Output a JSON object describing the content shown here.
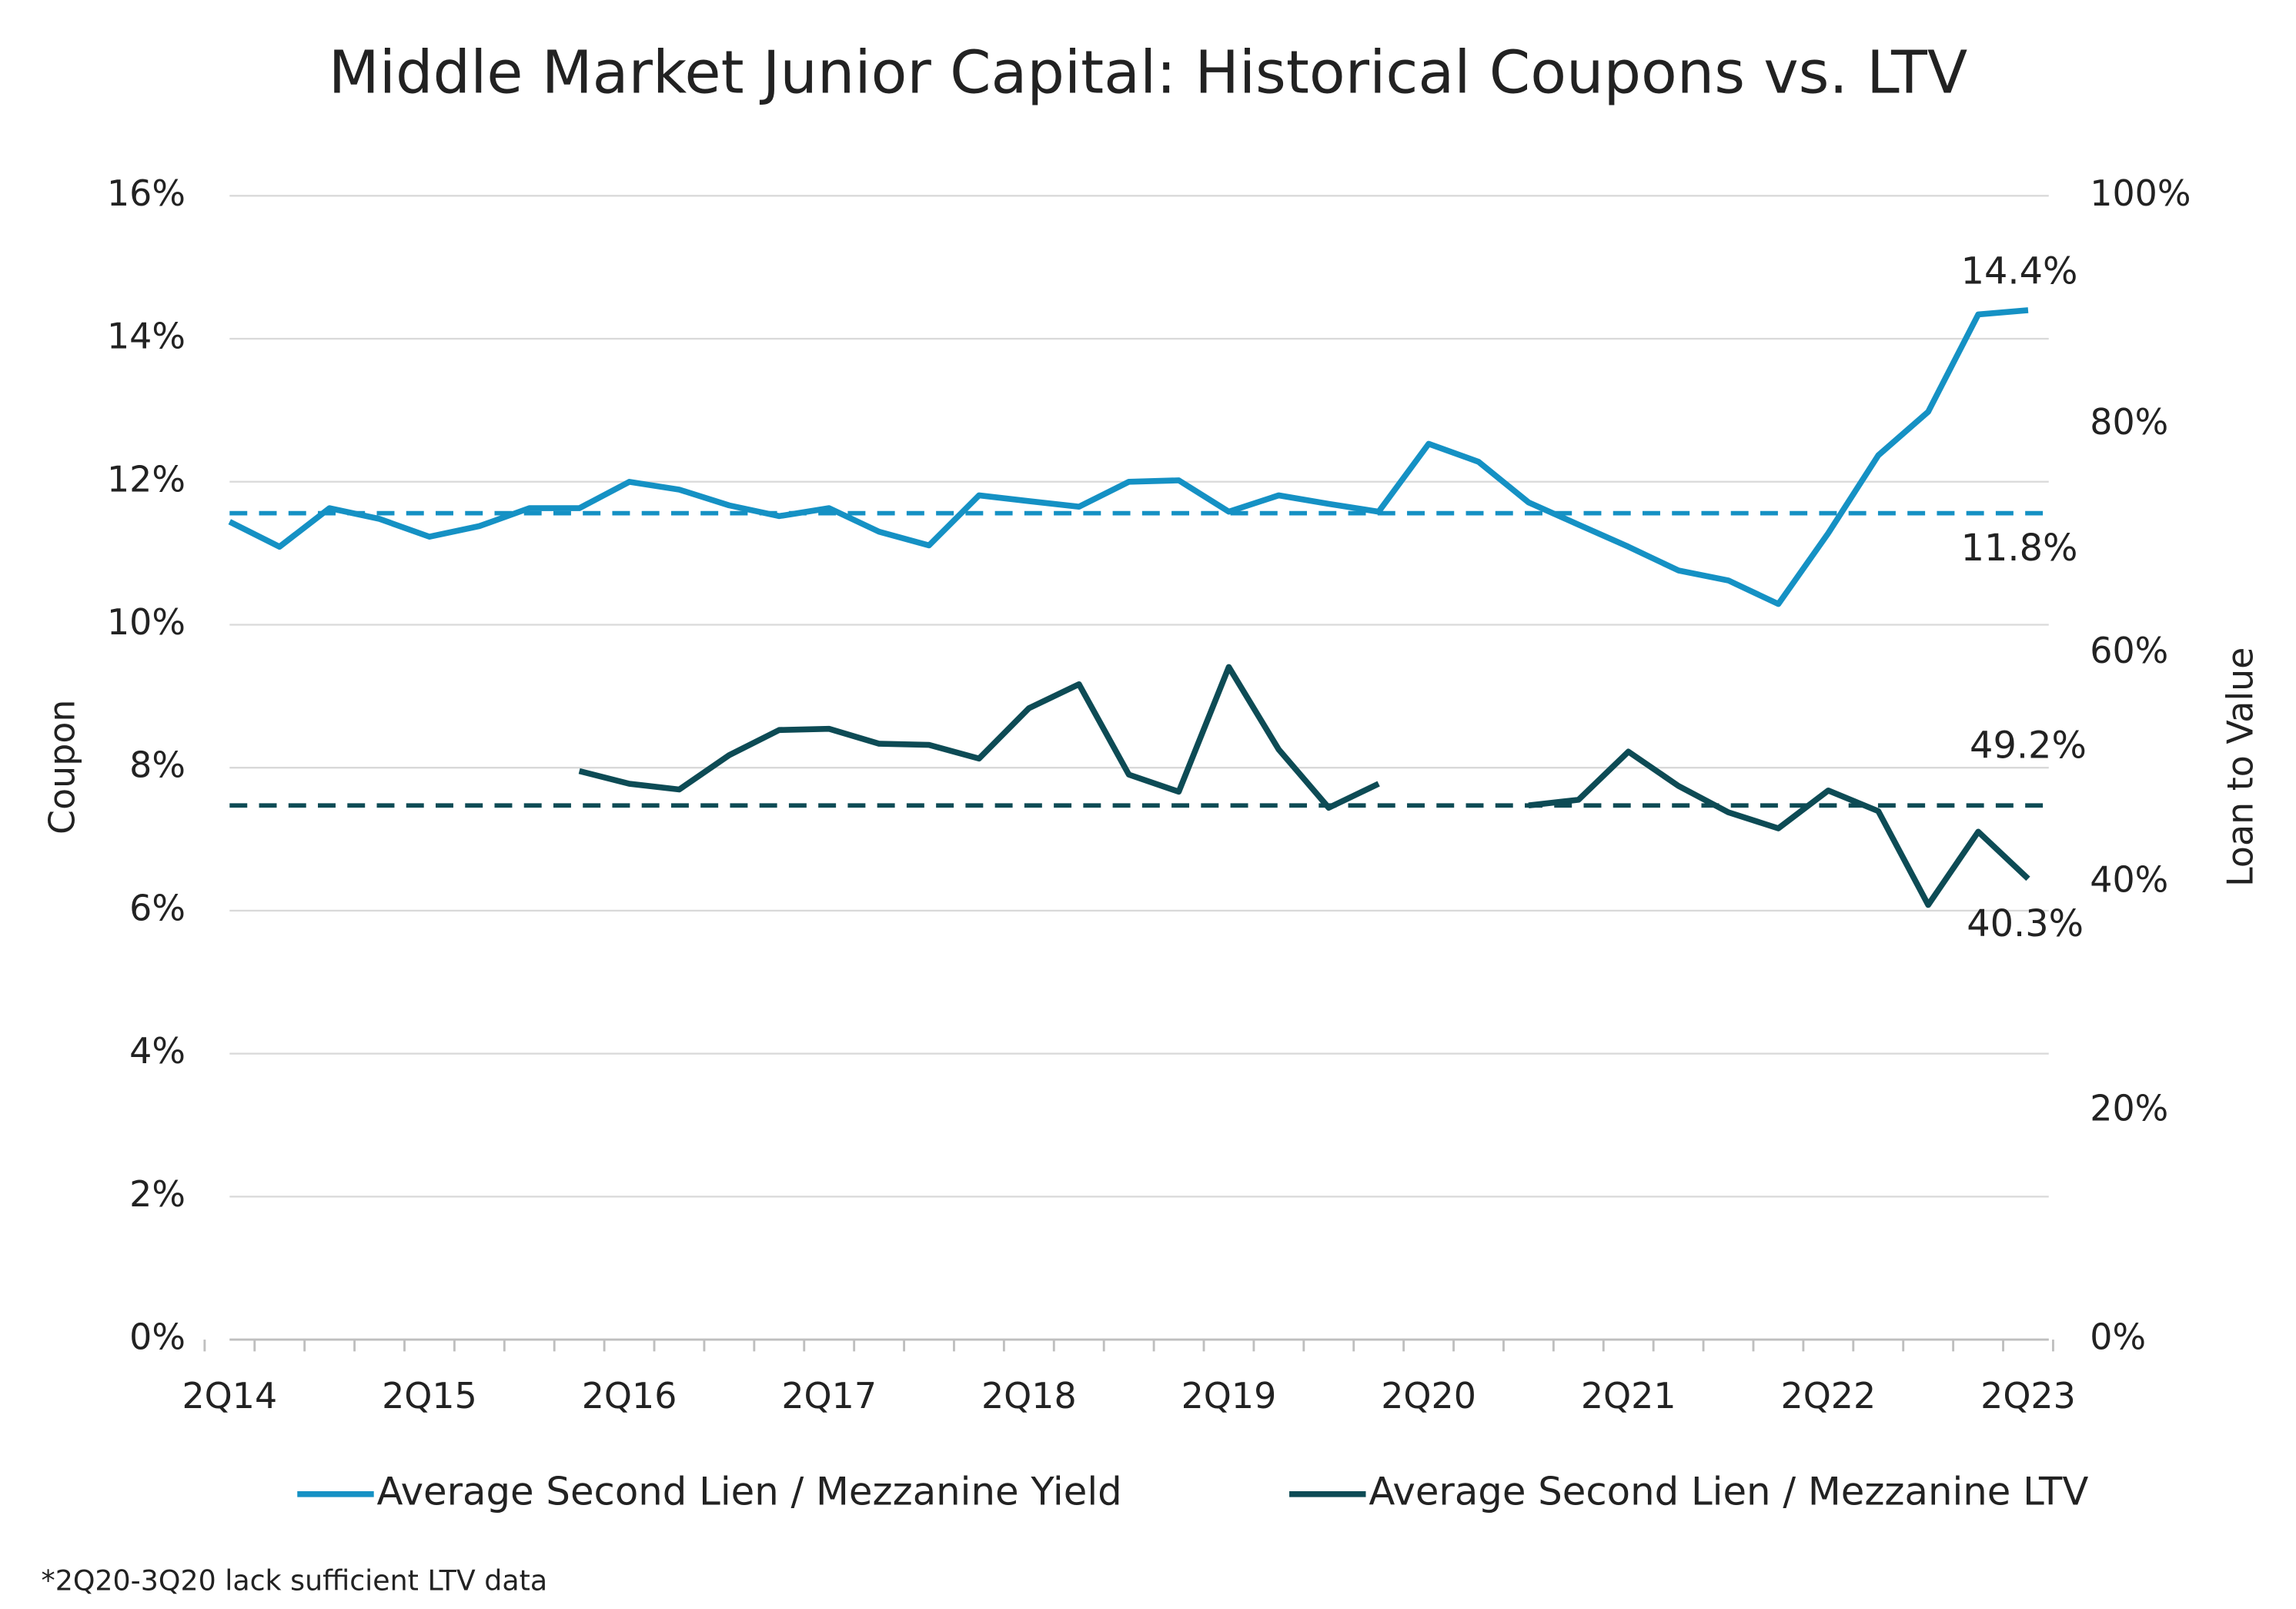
{
  "chart_data": {
    "type": "line",
    "title": "Middle Market Junior Capital: Historical Coupons vs. LTV",
    "y_label": "Coupon",
    "y2_label": "Loan to Value",
    "categories": [
      "2Q14",
      null,
      null,
      null,
      "2Q15",
      null,
      null,
      null,
      "2Q16",
      null,
      null,
      null,
      "2Q17",
      null,
      null,
      null,
      "2Q18",
      null,
      null,
      null,
      "2Q19",
      null,
      null,
      null,
      "2Q20",
      null,
      null,
      null,
      "2Q21",
      null,
      null,
      null,
      "2Q22",
      null,
      null,
      null,
      "2Q23"
    ],
    "series": [
      {
        "name": "Average Second Lien / Mezzanine Yield",
        "color": "#1591c4",
        "axis": "y",
        "values": [
          11.44,
          11.09,
          11.63,
          11.48,
          11.23,
          11.38,
          11.63,
          11.63,
          12.0,
          11.89,
          11.67,
          11.52,
          11.63,
          11.3,
          11.11,
          11.81,
          11.73,
          11.65,
          12.0,
          12.02,
          11.58,
          11.81,
          11.69,
          11.58,
          12.53,
          12.28,
          11.71,
          11.4,
          11.09,
          10.76,
          10.62,
          10.29,
          11.28,
          12.37,
          12.98,
          14.34,
          14.4
        ]
      },
      {
        "name": "Average Second Lien / Mezzanine LTV",
        "color": "#0d4b55",
        "axis": "y2",
        "values": [
          null,
          null,
          null,
          null,
          null,
          null,
          null,
          49.7,
          48.6,
          48.1,
          51.1,
          53.3,
          53.4,
          52.1,
          52.0,
          50.8,
          55.2,
          57.3,
          49.4,
          47.9,
          58.8,
          51.6,
          46.5,
          48.6,
          null,
          null,
          46.7,
          47.2,
          51.4,
          48.4,
          46.1,
          44.7,
          48.0,
          46.2,
          38.0,
          44.4,
          40.3
        ]
      }
    ],
    "reference_lines": [
      {
        "axis": "y",
        "value": 11.56,
        "color": "#1591c4"
      },
      {
        "axis": "y2",
        "value": 46.7,
        "color": "#0d4b55"
      }
    ],
    "annotations": [
      "14.4%",
      "11.8%",
      "49.2%",
      "40.3%"
    ],
    "ylim": [
      0,
      16
    ],
    "yticks": [
      {
        "value": 0,
        "label": "0%"
      },
      {
        "value": 2,
        "label": "2%"
      },
      {
        "value": 4,
        "label": "4%"
      },
      {
        "value": 6,
        "label": "6%"
      },
      {
        "value": 8,
        "label": "8%"
      },
      {
        "value": 10,
        "label": "10%"
      },
      {
        "value": 12,
        "label": "12%"
      },
      {
        "value": 14,
        "label": "14%"
      },
      {
        "value": 16,
        "label": "16%"
      }
    ],
    "y2lim": [
      0,
      100
    ],
    "y2ticks": [
      {
        "value": 0,
        "label": "0%"
      },
      {
        "value": 20,
        "label": "20%"
      },
      {
        "value": 40,
        "label": "40%"
      },
      {
        "value": 60,
        "label": "60%"
      },
      {
        "value": 80,
        "label": "80%"
      },
      {
        "value": 100,
        "label": "100%"
      }
    ],
    "grid": true,
    "legend": "bottom",
    "footnote": "*2Q20-3Q20 lack sufficient LTV data"
  }
}
